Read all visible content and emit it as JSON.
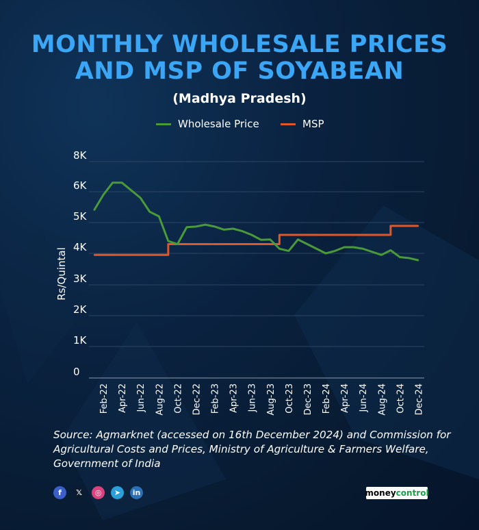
{
  "title_line1": "MONTHLY WHOLESALE PRICES",
  "title_line2": "AND MSP OF SOYABEAN",
  "subtitle": "(Madhya Pradesh)",
  "colors": {
    "title": "#3aa6f5",
    "wholesale": "#4a9a3a",
    "msp": "#e0572a"
  },
  "chart_data": {
    "type": "line",
    "ylabel": "Rs/Quintal",
    "xlabel": "",
    "ylim": [
      0,
      8000
    ],
    "yticks": [
      0,
      1000,
      2000,
      3000,
      4000,
      5000,
      6000,
      8000
    ],
    "ytick_labels": [
      "0",
      "1K",
      "2K",
      "3K",
      "4K",
      "5K",
      "6K",
      "8K"
    ],
    "grid": true,
    "legend": "top-center",
    "x": [
      "Jan-22",
      "Feb-22",
      "Mar-22",
      "Apr-22",
      "May-22",
      "Jun-22",
      "Jul-22",
      "Aug-22",
      "Sep-22",
      "Oct-22",
      "Nov-22",
      "Dec-22",
      "Jan-23",
      "Feb-23",
      "Mar-23",
      "Apr-23",
      "May-23",
      "Jun-23",
      "Jul-23",
      "Aug-23",
      "Sep-23",
      "Oct-23",
      "Nov-23",
      "Dec-23",
      "Jan-24",
      "Feb-24",
      "Mar-24",
      "Apr-24",
      "May-24",
      "Jun-24",
      "Jul-24",
      "Aug-24",
      "Sep-24",
      "Oct-24",
      "Nov-24",
      "Dec-24"
    ],
    "xtick_labels": [
      "Feb-22",
      "Apr-22",
      "Jun-22",
      "Aug-22",
      "Oct-22",
      "Dec-22",
      "Feb-23",
      "Apr-23",
      "Jun-23",
      "Aug-23",
      "Oct-23",
      "Dec-23",
      "Feb-24",
      "Apr-24",
      "Jun-24",
      "Aug-24",
      "Oct-24",
      "Dec-24"
    ],
    "series": [
      {
        "name": "Wholesale Price",
        "values": [
          5400,
          5900,
          6600,
          6600,
          6100,
          5800,
          5350,
          5200,
          4400,
          4300,
          4850,
          4870,
          4930,
          4870,
          4770,
          4800,
          4720,
          4600,
          4440,
          4450,
          4150,
          4080,
          4450,
          4300,
          4150,
          4000,
          4080,
          4200,
          4200,
          4150,
          4050,
          3950,
          4100,
          3880,
          3850,
          3780
        ]
      },
      {
        "name": "MSP",
        "values": [
          3950,
          3950,
          3950,
          3950,
          3950,
          3950,
          3950,
          3950,
          4300,
          4300,
          4300,
          4300,
          4300,
          4300,
          4300,
          4300,
          4300,
          4300,
          4300,
          4300,
          4600,
          4600,
          4600,
          4600,
          4600,
          4600,
          4600,
          4600,
          4600,
          4600,
          4600,
          4600,
          4892,
          4892,
          4892,
          4892
        ]
      }
    ]
  },
  "source": "Source: Agmarknet (accessed on 16th December 2024) and Commission for Agricultural Costs and Prices, Ministry of Agriculture & Farmers Welfare, Government of India",
  "social": [
    {
      "icon": "facebook-icon",
      "glyph": "f",
      "color": "#3b5ec9"
    },
    {
      "icon": "x-icon",
      "glyph": "𝕏",
      "color": "#0b1b30"
    },
    {
      "icon": "instagram-icon",
      "glyph": "◎",
      "color": "#d9437e"
    },
    {
      "icon": "telegram-icon",
      "glyph": "➤",
      "color": "#2a9fd8"
    },
    {
      "icon": "linkedin-icon",
      "glyph": "in",
      "color": "#2b6fb4"
    }
  ],
  "logo": {
    "part1": "money",
    "part2": "control"
  }
}
